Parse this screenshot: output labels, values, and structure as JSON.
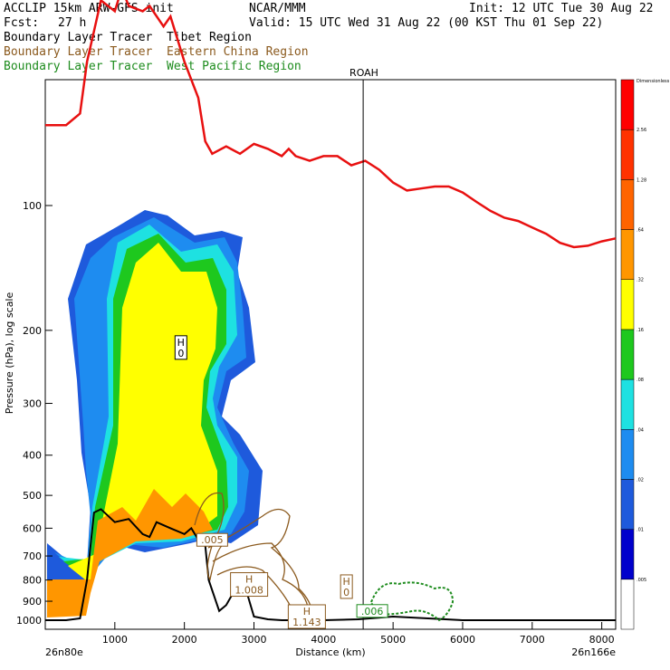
{
  "header": {
    "model": "ACCLIP 15km ARW-GFS init",
    "org": "NCAR/MMM",
    "init": "Init: 12 UTC Tue 30 Aug 22",
    "fcst_label": "Fcst:",
    "fcst_value": "27 h",
    "valid": "Valid: 15 UTC Wed 31 Aug 22 (00 KST Thu 01 Sep 22)"
  },
  "legend": [
    {
      "text": "Boundary Layer Tracer  Tibet Region",
      "color": "#000000"
    },
    {
      "text": "Boundary Layer Tracer  Eastern China Region",
      "color": "#8B5A1E"
    },
    {
      "text": "Boundary Layer Tracer  West Pacific Region",
      "color": "#1E8C1E"
    }
  ],
  "chart_data": {
    "type": "cross-section",
    "ylabel": "Pressure (hPa), log scale",
    "xlabel": "Distance (km)",
    "x_ticks": [
      "1000",
      "2000",
      "3000",
      "4000",
      "5000",
      "6000",
      "7000",
      "8000"
    ],
    "x_tick_values": [
      1000,
      2000,
      3000,
      4000,
      5000,
      6000,
      7000,
      8000
    ],
    "y_ticks": [
      "100",
      "200",
      "300",
      "400",
      "500",
      "600",
      "700",
      "800",
      "900",
      "1000"
    ],
    "y_tick_values": [
      100,
      200,
      300,
      400,
      500,
      600,
      700,
      800,
      900,
      1000
    ],
    "xlim": [
      0,
      8200
    ],
    "left_endpoint": "26n80e",
    "right_endpoint": "26n166e",
    "station_marker": {
      "label": "ROAH",
      "x_km": 4570
    },
    "colorbar": {
      "title": "Dimensionless",
      "levels": [
        ".005",
        ".01",
        ".02",
        ".04",
        ".08",
        ".16",
        ".32",
        ".64",
        "1.28",
        "2.56"
      ],
      "colors": [
        "#ffffff",
        "#0000cc",
        "#1e5adc",
        "#1e8cf0",
        "#1ee1e1",
        "#1ec81e",
        "#ffff00",
        "#ff9600",
        "#ff6400",
        "#ff3200",
        "#ff0000"
      ]
    },
    "tropopause": {
      "x": [
        0,
        300,
        500,
        600,
        700,
        800,
        1000,
        1100,
        1200,
        1400,
        1500,
        1700,
        1800,
        2000,
        2200,
        2300,
        2400,
        2600,
        2800,
        3000,
        3200,
        3400,
        3500,
        3600,
        3800,
        4000,
        4200,
        4400,
        4600,
        4800,
        5000,
        5200,
        5400,
        5600,
        5800,
        6000,
        6200,
        6400,
        6600,
        6800,
        7000,
        7200,
        7400,
        7600,
        7800,
        8000,
        8200
      ],
      "p": [
        64,
        64,
        60,
        45,
        38,
        32,
        34,
        30,
        33,
        34,
        33,
        37,
        35,
        45,
        55,
        70,
        75,
        72,
        75,
        71,
        73,
        76,
        73,
        76,
        78,
        76,
        76,
        80,
        78,
        82,
        88,
        92,
        91,
        90,
        90,
        93,
        98,
        103,
        107,
        109,
        113,
        117,
        123,
        126,
        125,
        122,
        120
      ]
    },
    "terrain": {
      "x": [
        0,
        100,
        300,
        500,
        600,
        700,
        800,
        1000,
        1200,
        1400,
        1500,
        1600,
        1800,
        2000,
        2100,
        2200,
        2300,
        2350,
        2500,
        2600,
        2700,
        2800,
        2900,
        3000,
        3200,
        3400,
        3600,
        3800,
        4000,
        4500,
        5000,
        6000,
        7000,
        8200
      ],
      "p": [
        1000,
        1000,
        1000,
        990,
        800,
        550,
        540,
        580,
        570,
        620,
        630,
        580,
        600,
        620,
        600,
        640,
        660,
        800,
        950,
        920,
        860,
        800,
        860,
        980,
        995,
        1000,
        1000,
        1000,
        1000,
        995,
        980,
        1000,
        1000,
        1000
      ]
    },
    "highs": [
      {
        "label": "H",
        "value": "0",
        "x_km": 1950,
        "p": 220,
        "color": "#000000"
      },
      {
        "label": "H",
        "value": "0",
        "x_km": 4330,
        "p": 830,
        "color": "#8B5A1E"
      },
      {
        "label": "H",
        "value": "1.008",
        "x_km": 2930,
        "p": 820,
        "color": "#8B5A1E"
      },
      {
        "label": "H",
        "value": "1.143",
        "x_km": 3760,
        "p": 980,
        "color": "#8B5A1E"
      },
      {
        "label": "",
        "value": ".005",
        "x_km": 2400,
        "p": 640,
        "color": "#8B5A1E"
      },
      {
        "label": "",
        "value": ".006",
        "x_km": 4700,
        "p": 950,
        "color": "#1E8C1E"
      }
    ]
  }
}
